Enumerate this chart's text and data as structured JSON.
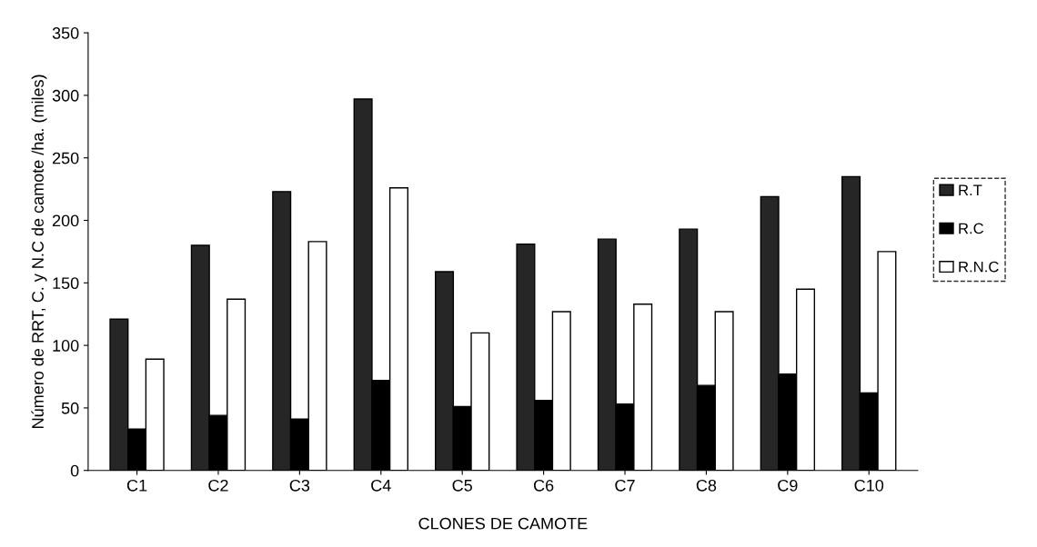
{
  "chart_data": {
    "type": "bar",
    "xlabel": "CLONES DE CAMOTE",
    "ylabel": "Número de RRT, C. y N.C de camote /ha. (miles)",
    "categories": [
      "C1",
      "C2",
      "C3",
      "C4",
      "C5",
      "C6",
      "C7",
      "C8",
      "C9",
      "C10"
    ],
    "series": [
      {
        "name": "R.T",
        "color": "#262626",
        "values": [
          121,
          180,
          223,
          297,
          159,
          181,
          185,
          193,
          219,
          235
        ]
      },
      {
        "name": "R.C",
        "color": "#000000",
        "values": [
          33,
          44,
          41,
          72,
          51,
          56,
          53,
          68,
          77,
          62
        ]
      },
      {
        "name": "R.N.C",
        "color": "#ffffff",
        "values": [
          89,
          137,
          183,
          226,
          110,
          127,
          133,
          127,
          145,
          175
        ]
      }
    ],
    "ylim": [
      0,
      350
    ],
    "yticks": [
      0,
      50,
      100,
      150,
      200,
      250,
      300,
      350
    ],
    "grid": false,
    "legend": "right"
  }
}
